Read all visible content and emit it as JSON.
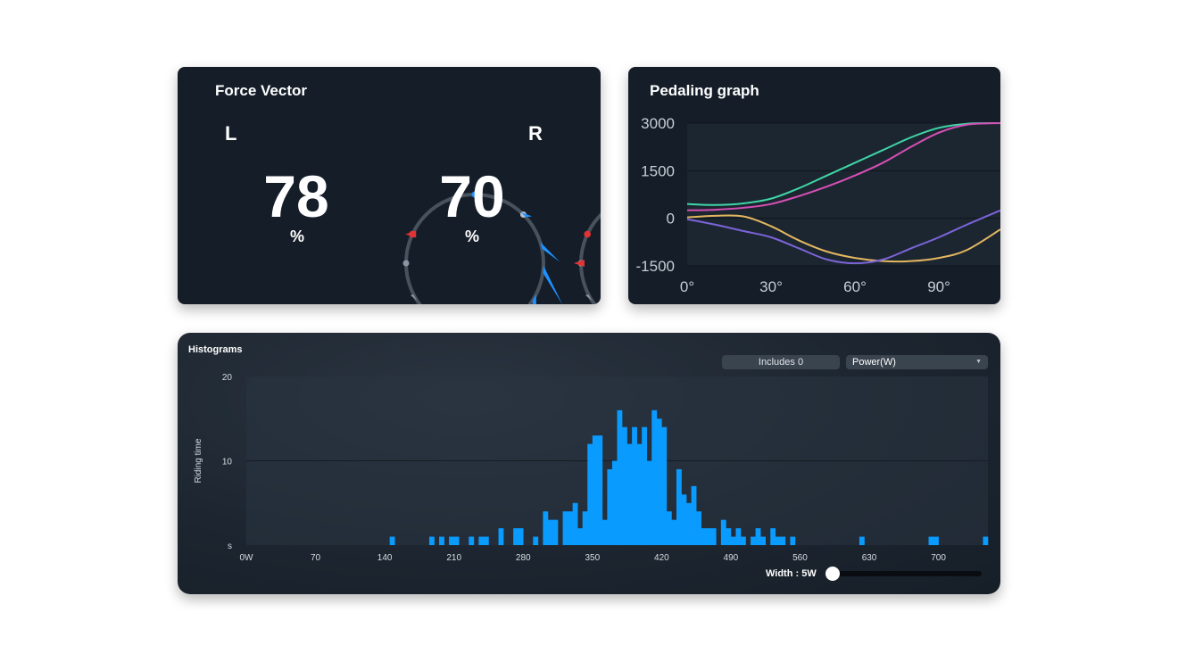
{
  "force_vector": {
    "title": "Force Vector",
    "left": {
      "side": "L",
      "value": "78",
      "unit": "%"
    },
    "right": {
      "side": "R",
      "value": "70",
      "unit": "%"
    }
  },
  "pedaling_graph": {
    "title": "Pedaling graph",
    "chart_data": {
      "type": "line",
      "y_ticks": [
        "3000",
        "1500",
        "0",
        "-1500"
      ],
      "x_ticks": [
        "0°",
        "30°",
        "60°",
        "90°"
      ],
      "ylim": [
        -1500,
        3000
      ],
      "xlim": [
        0,
        112
      ],
      "series": [
        {
          "color": "#3fd6a6",
          "x": [
            0,
            10,
            20,
            30,
            40,
            50,
            60,
            70,
            80,
            90,
            100,
            112
          ],
          "y": [
            450,
            420,
            470,
            620,
            950,
            1350,
            1750,
            2150,
            2550,
            2850,
            2980,
            3000
          ]
        },
        {
          "color": "#d74fb6",
          "x": [
            0,
            10,
            20,
            30,
            40,
            50,
            60,
            70,
            80,
            90,
            100,
            112
          ],
          "y": [
            250,
            270,
            330,
            450,
            700,
            1000,
            1350,
            1750,
            2250,
            2700,
            2950,
            3000
          ]
        },
        {
          "color": "#e3b760",
          "x": [
            0,
            10,
            20,
            30,
            40,
            50,
            60,
            70,
            80,
            90,
            100,
            112
          ],
          "y": [
            30,
            80,
            60,
            -250,
            -700,
            -1050,
            -1250,
            -1350,
            -1350,
            -1250,
            -1000,
            -350
          ]
        },
        {
          "color": "#7b64d8",
          "x": [
            0,
            10,
            20,
            30,
            40,
            50,
            60,
            70,
            80,
            90,
            100,
            112
          ],
          "y": [
            -30,
            -200,
            -400,
            -600,
            -950,
            -1300,
            -1420,
            -1300,
            -950,
            -600,
            -200,
            250
          ]
        }
      ]
    }
  },
  "histograms": {
    "title": "Histograms",
    "includes_label": "Includes 0",
    "dropdown_value": "Power(W)",
    "ylabel": "Riding time",
    "width_label": "Width : 5W",
    "slider_value": 0,
    "chart_data": {
      "type": "bar",
      "ylim": [
        0,
        20
      ],
      "y_ticks": [
        "20",
        "10",
        "s"
      ],
      "x_tick_labels": [
        "0W",
        "70",
        "140",
        "210",
        "280",
        "350",
        "420",
        "490",
        "560",
        "630",
        "700"
      ],
      "xlim": [
        0,
        750
      ],
      "bin_width": 5,
      "bins": [
        [
          145,
          1
        ],
        [
          185,
          1
        ],
        [
          195,
          1
        ],
        [
          205,
          1
        ],
        [
          210,
          1
        ],
        [
          225,
          1
        ],
        [
          235,
          1
        ],
        [
          240,
          1
        ],
        [
          255,
          2
        ],
        [
          270,
          2
        ],
        [
          275,
          2
        ],
        [
          290,
          1
        ],
        [
          300,
          4
        ],
        [
          305,
          3
        ],
        [
          310,
          3
        ],
        [
          320,
          4
        ],
        [
          325,
          4
        ],
        [
          330,
          5
        ],
        [
          335,
          2
        ],
        [
          340,
          4
        ],
        [
          345,
          12
        ],
        [
          350,
          13
        ],
        [
          355,
          13
        ],
        [
          360,
          3
        ],
        [
          365,
          9
        ],
        [
          370,
          10
        ],
        [
          375,
          16
        ],
        [
          380,
          14
        ],
        [
          385,
          12
        ],
        [
          390,
          14
        ],
        [
          395,
          12
        ],
        [
          400,
          14
        ],
        [
          405,
          10
        ],
        [
          410,
          16
        ],
        [
          415,
          15
        ],
        [
          420,
          14
        ],
        [
          425,
          4
        ],
        [
          430,
          3
        ],
        [
          435,
          9
        ],
        [
          440,
          6
        ],
        [
          445,
          5
        ],
        [
          450,
          7
        ],
        [
          455,
          4
        ],
        [
          460,
          2
        ],
        [
          465,
          2
        ],
        [
          470,
          2
        ],
        [
          480,
          3
        ],
        [
          485,
          2
        ],
        [
          490,
          1
        ],
        [
          495,
          2
        ],
        [
          500,
          1
        ],
        [
          510,
          1
        ],
        [
          515,
          2
        ],
        [
          520,
          1
        ],
        [
          530,
          2
        ],
        [
          535,
          1
        ],
        [
          540,
          1
        ],
        [
          550,
          1
        ],
        [
          620,
          1
        ],
        [
          690,
          1
        ],
        [
          695,
          1
        ],
        [
          745,
          1
        ]
      ]
    }
  }
}
